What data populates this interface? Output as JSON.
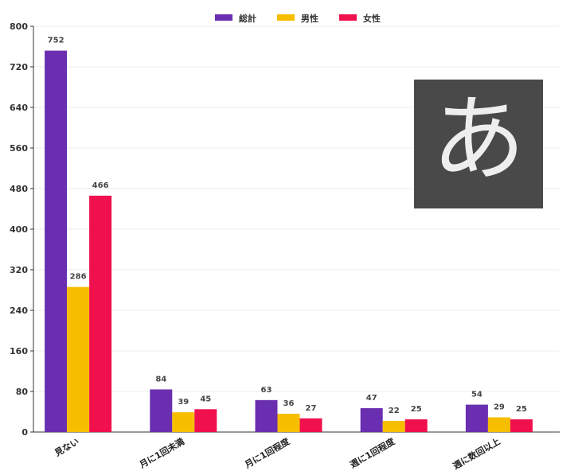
{
  "chart_data": {
    "type": "bar",
    "title": "",
    "xlabel": "",
    "ylabel": "",
    "ylim": [
      0,
      800
    ],
    "yticks": [
      0,
      80,
      160,
      240,
      320,
      400,
      480,
      560,
      640,
      720,
      800
    ],
    "grid": true,
    "legend_position": "top-center",
    "categories": [
      "見ない",
      "月に1回未満",
      "月に1回程度",
      "週に1回程度",
      "週に数回以上"
    ],
    "series": [
      {
        "name": "総計",
        "color": "#6a2fb0",
        "values": [
          752,
          84,
          63,
          47,
          54
        ]
      },
      {
        "name": "男性",
        "color": "#f7be00",
        "values": [
          286,
          39,
          36,
          22,
          29
        ]
      },
      {
        "name": "女性",
        "color": "#f0104e",
        "values": [
          466,
          45,
          27,
          25,
          25
        ]
      }
    ]
  },
  "overlay": {
    "ime_indicator": "あ"
  }
}
